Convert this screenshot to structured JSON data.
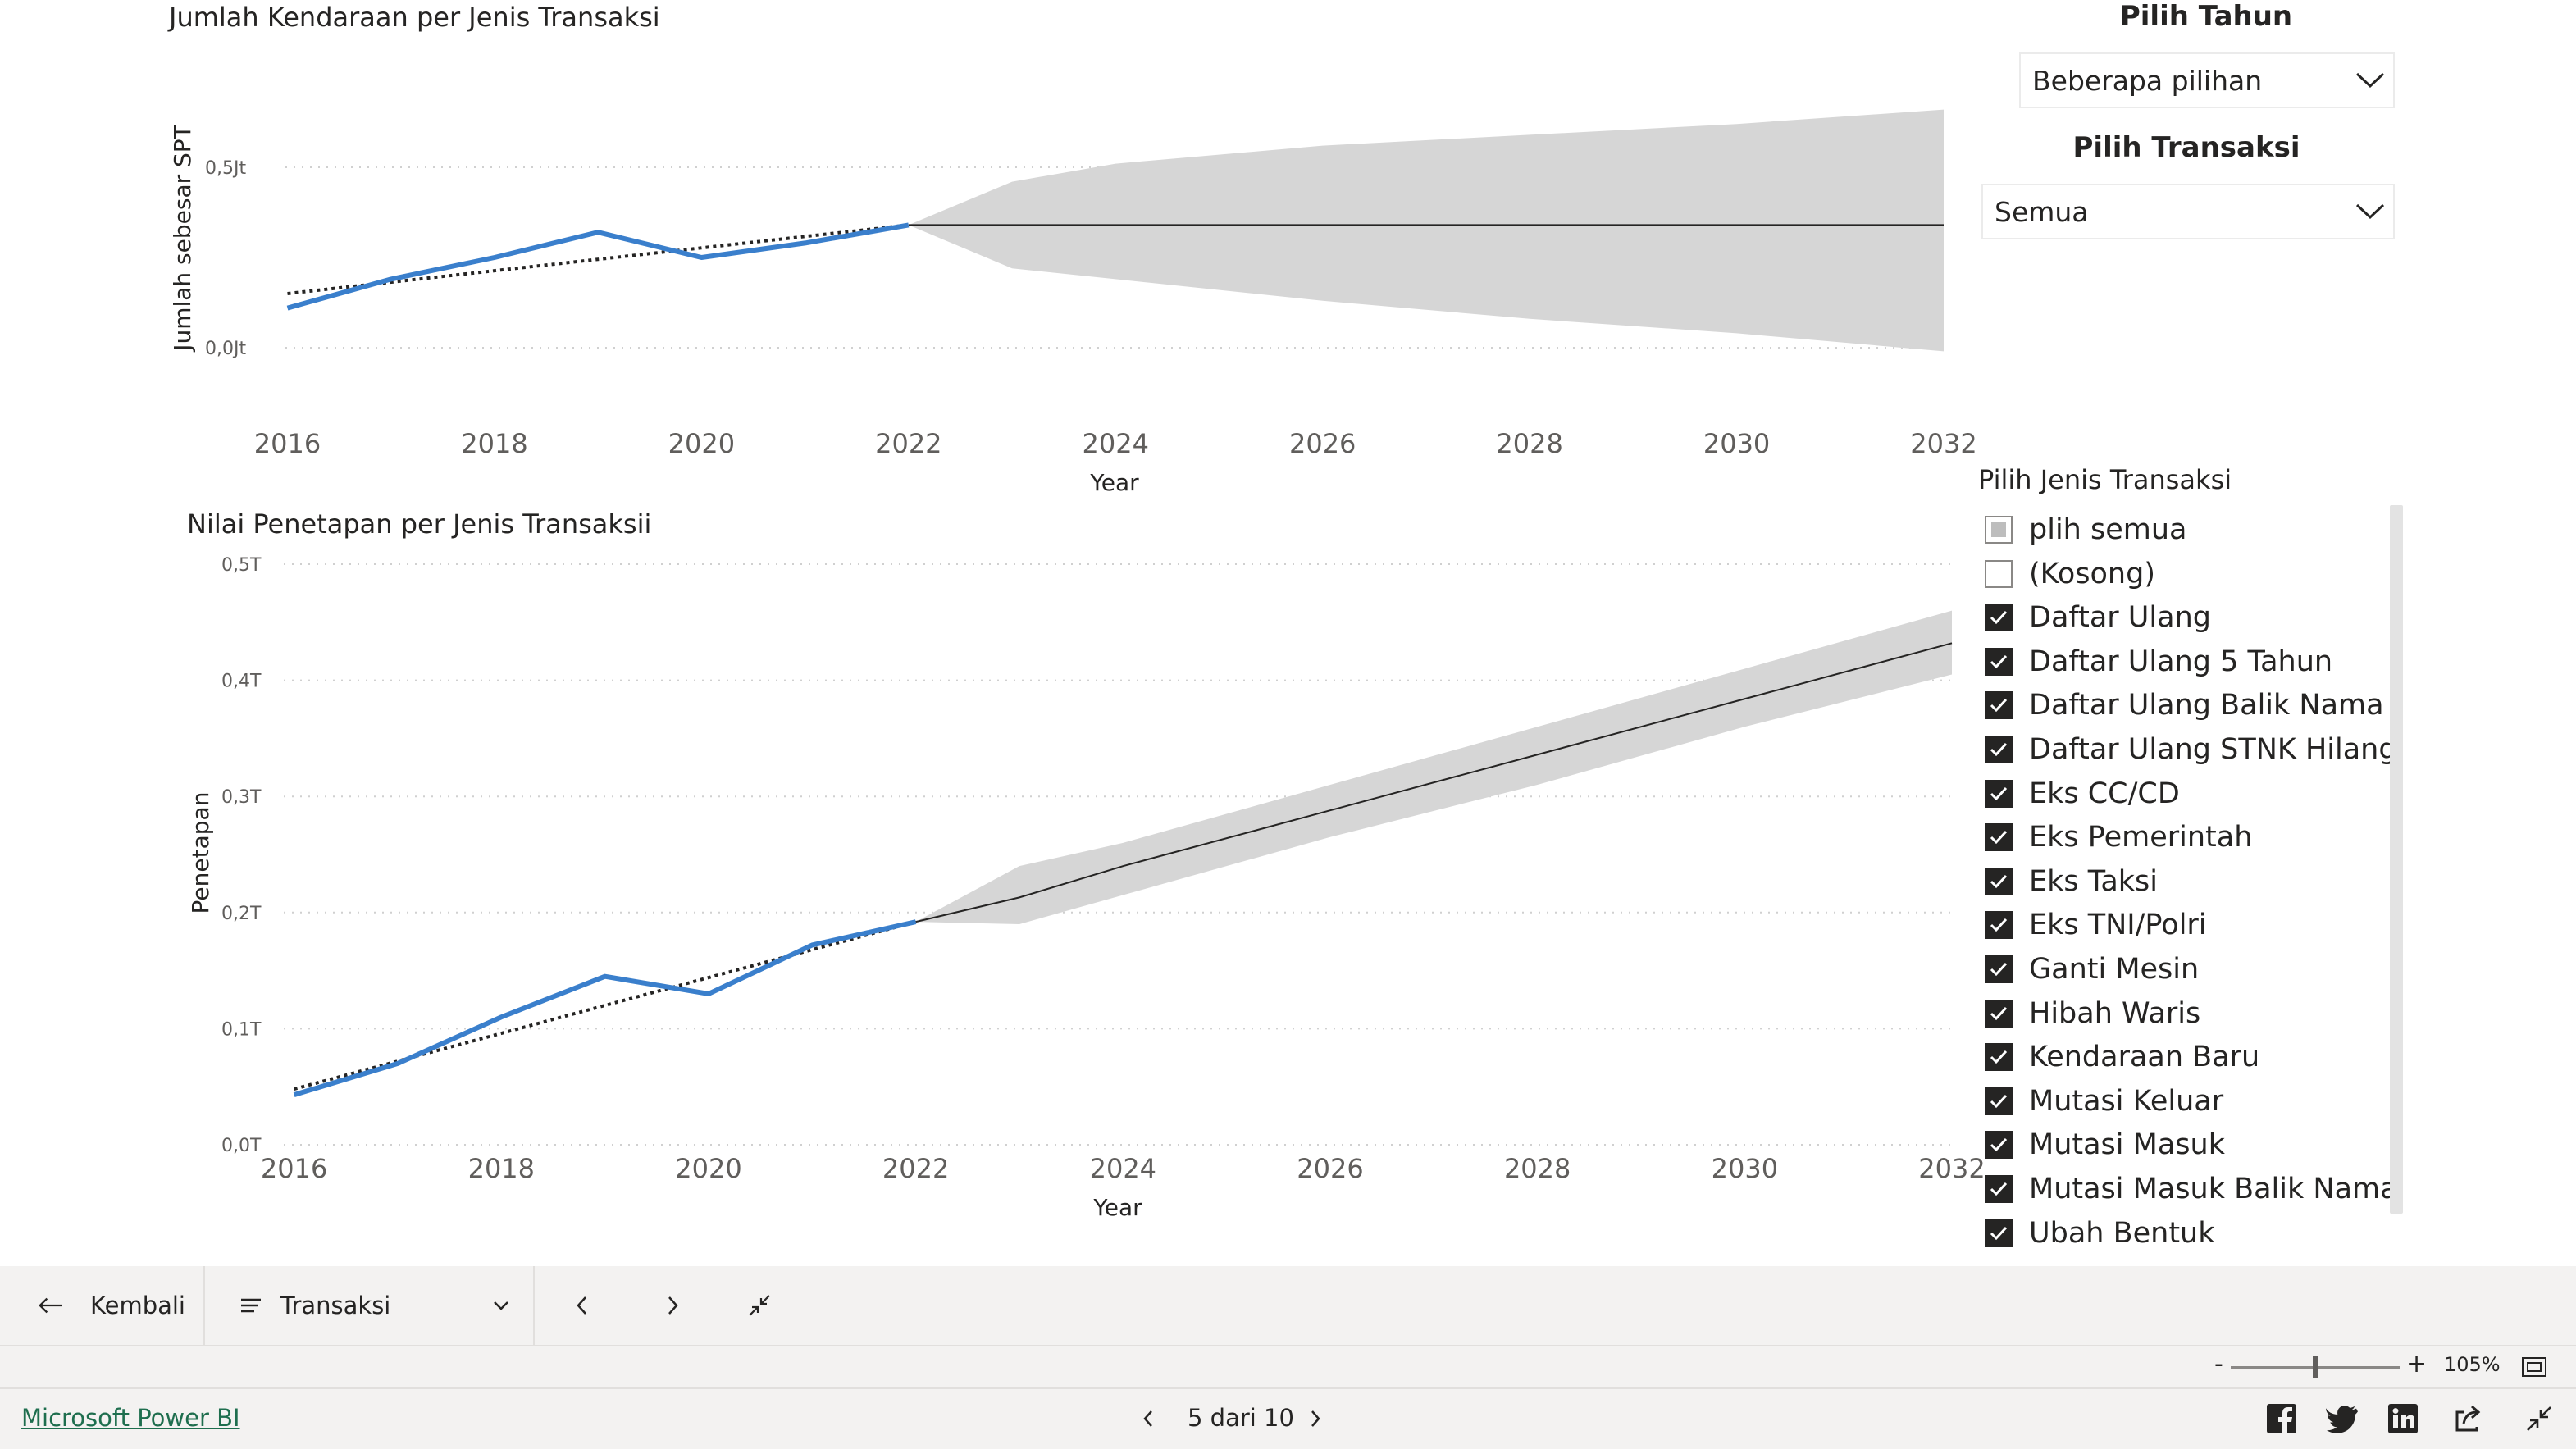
{
  "charts": {
    "top": {
      "title": "Jumlah Kendaraan per Jenis Transaksi",
      "ylabel": "Jumlah sebesar SPT",
      "xlabel": "Year",
      "x_ticks": [
        "2016",
        "2018",
        "2020",
        "2022",
        "2024",
        "2026",
        "2028",
        "2030",
        "2032"
      ],
      "y_ticks": [
        "0,0Jt",
        "0,5Jt"
      ]
    },
    "bottom": {
      "title": "Nilai Penetapan per Jenis Transaksii",
      "ylabel": "Penetapan",
      "xlabel": "Year",
      "x_ticks": [
        "2016",
        "2018",
        "2020",
        "2022",
        "2024",
        "2026",
        "2028",
        "2030",
        "2032"
      ],
      "y_ticks": [
        "0,0T",
        "0,1T",
        "0,2T",
        "0,3T",
        "0,4T",
        "0,5T"
      ]
    }
  },
  "chart_data": [
    {
      "type": "line",
      "title": "Jumlah Kendaraan per Jenis Transaksi",
      "xlabel": "Year",
      "ylabel": "Jumlah sebesar SPT",
      "xlim": [
        2015.98,
        2032
      ],
      "ylim": [
        0,
        0.5
      ],
      "y_unit": "Jt",
      "grid": true,
      "series": [
        {
          "x": [
            2016,
            2017,
            2018,
            2019,
            2020,
            2021,
            2022
          ],
          "y": [
            0.11,
            0.19,
            0.25,
            0.32,
            0.25,
            0.29,
            0.34
          ]
        }
      ],
      "trend_line": {
        "x": [
          2016,
          2022
        ],
        "y": [
          0.15,
          0.34
        ]
      },
      "forecast": {
        "x": [
          2022,
          2023,
          2024,
          2026,
          2028,
          2030,
          2032
        ],
        "y": [
          0.34,
          0.34,
          0.34,
          0.34,
          0.34,
          0.34,
          0.34
        ],
        "upper": [
          0.34,
          0.46,
          0.51,
          0.56,
          0.59,
          0.62,
          0.66
        ],
        "lower": [
          0.34,
          0.22,
          0.19,
          0.13,
          0.08,
          0.04,
          -0.01
        ]
      }
    },
    {
      "type": "line",
      "title": "Nilai Penetapan per Jenis Transaksii",
      "xlabel": "Year",
      "ylabel": "Penetapan",
      "xlim": [
        2015.9,
        2032
      ],
      "ylim": [
        0,
        0.5
      ],
      "y_unit": "T",
      "grid": true,
      "series": [
        {
          "x": [
            2016,
            2017,
            2018,
            2019,
            2020,
            2021,
            2022
          ],
          "y": [
            0.043,
            0.07,
            0.11,
            0.145,
            0.13,
            0.172,
            0.192
          ]
        }
      ],
      "trend_line": {
        "x": [
          2016,
          2022
        ],
        "y": [
          0.048,
          0.192
        ]
      },
      "forecast": {
        "x": [
          2022,
          2023,
          2024,
          2026,
          2028,
          2030,
          2032
        ],
        "y": [
          0.192,
          0.213,
          0.24,
          0.288,
          0.336,
          0.384,
          0.432
        ],
        "upper": [
          0.192,
          0.24,
          0.26,
          0.31,
          0.36,
          0.41,
          0.46
        ],
        "lower": [
          0.192,
          0.19,
          0.215,
          0.265,
          0.31,
          0.36,
          0.405
        ]
      }
    }
  ],
  "slicers": {
    "tahun": {
      "title": "Pilih Tahun",
      "value": "Beberapa pilihan"
    },
    "transaksi": {
      "title": "Pilih Transaksi",
      "value": "Semua"
    },
    "jenis": {
      "title": "Pilih Jenis Transaksi",
      "items": [
        {
          "label": "plih semua",
          "state": "partial"
        },
        {
          "label": "(Kosong)",
          "state": "unchecked"
        },
        {
          "label": "Daftar Ulang",
          "state": "checked"
        },
        {
          "label": "Daftar Ulang 5 Tahun",
          "state": "checked"
        },
        {
          "label": "Daftar Ulang Balik Nama",
          "state": "checked"
        },
        {
          "label": "Daftar Ulang STNK Hilang",
          "state": "checked"
        },
        {
          "label": "Eks CC/CD",
          "state": "checked"
        },
        {
          "label": "Eks Pemerintah",
          "state": "checked"
        },
        {
          "label": "Eks Taksi",
          "state": "checked"
        },
        {
          "label": "Eks TNI/Polri",
          "state": "checked"
        },
        {
          "label": "Ganti Mesin",
          "state": "checked"
        },
        {
          "label": "Hibah Waris",
          "state": "checked"
        },
        {
          "label": "Kendaraan Baru",
          "state": "checked"
        },
        {
          "label": "Mutasi Keluar",
          "state": "checked"
        },
        {
          "label": "Mutasi Masuk",
          "state": "checked"
        },
        {
          "label": "Mutasi Masuk Balik Nama",
          "state": "checked"
        },
        {
          "label": "Ubah Bentuk",
          "state": "checked"
        }
      ]
    }
  },
  "navbar": {
    "back_label": "Kembali",
    "page_select": "Transaksi"
  },
  "zoom": {
    "level": "105%",
    "minus": "-",
    "plus": "+"
  },
  "footer": {
    "brand": "Microsoft Power BI",
    "page_indicator": "5 dari 10"
  },
  "colors": {
    "series": "#3a7fcc",
    "forecast_band": "#d6d6d6",
    "forecast_line": "#252423",
    "trend": "#252423",
    "gridline": "#d0d0d0"
  }
}
